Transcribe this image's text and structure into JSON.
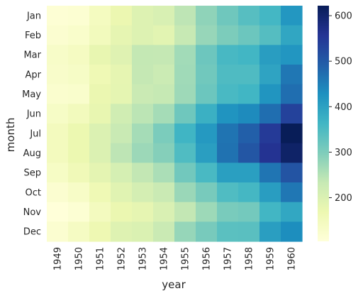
{
  "chart_data": {
    "type": "heatmap",
    "xlabel": "year",
    "ylabel": "month",
    "x": [
      "1949",
      "1950",
      "1951",
      "1952",
      "1953",
      "1954",
      "1955",
      "1956",
      "1957",
      "1958",
      "1959",
      "1960"
    ],
    "y": [
      "Jan",
      "Feb",
      "Mar",
      "Apr",
      "May",
      "Jun",
      "Jul",
      "Aug",
      "Sep",
      "Oct",
      "Nov",
      "Dec"
    ],
    "values": [
      [
        112,
        115,
        145,
        171,
        196,
        204,
        242,
        284,
        315,
        340,
        360,
        417
      ],
      [
        118,
        126,
        150,
        180,
        196,
        188,
        233,
        277,
        301,
        318,
        342,
        391
      ],
      [
        132,
        141,
        178,
        193,
        236,
        235,
        267,
        317,
        356,
        362,
        406,
        419
      ],
      [
        129,
        135,
        163,
        181,
        235,
        227,
        269,
        313,
        348,
        348,
        396,
        461
      ],
      [
        121,
        125,
        172,
        183,
        229,
        234,
        270,
        318,
        355,
        363,
        420,
        472
      ],
      [
        135,
        149,
        178,
        218,
        243,
        264,
        315,
        374,
        422,
        435,
        472,
        535
      ],
      [
        148,
        170,
        199,
        230,
        264,
        302,
        364,
        413,
        465,
        491,
        548,
        622
      ],
      [
        148,
        170,
        199,
        242,
        272,
        293,
        347,
        405,
        467,
        505,
        559,
        606
      ],
      [
        136,
        158,
        184,
        209,
        237,
        259,
        312,
        355,
        404,
        404,
        463,
        508
      ],
      [
        119,
        133,
        162,
        191,
        211,
        229,
        274,
        306,
        347,
        359,
        407,
        461
      ],
      [
        104,
        114,
        146,
        172,
        180,
        203,
        237,
        271,
        305,
        310,
        362,
        390
      ],
      [
        118,
        140,
        166,
        194,
        201,
        229,
        278,
        306,
        336,
        337,
        405,
        432
      ]
    ],
    "colorbar": {
      "range": [
        104,
        622
      ],
      "ticks": [
        200,
        300,
        400,
        500,
        600
      ]
    },
    "colormap": [
      "#ffffd9",
      "#edf8b1",
      "#c7e9b4",
      "#7fcdbb",
      "#41b6c4",
      "#1d91c0",
      "#225ea8",
      "#253494",
      "#081d58"
    ],
    "grid": false
  }
}
